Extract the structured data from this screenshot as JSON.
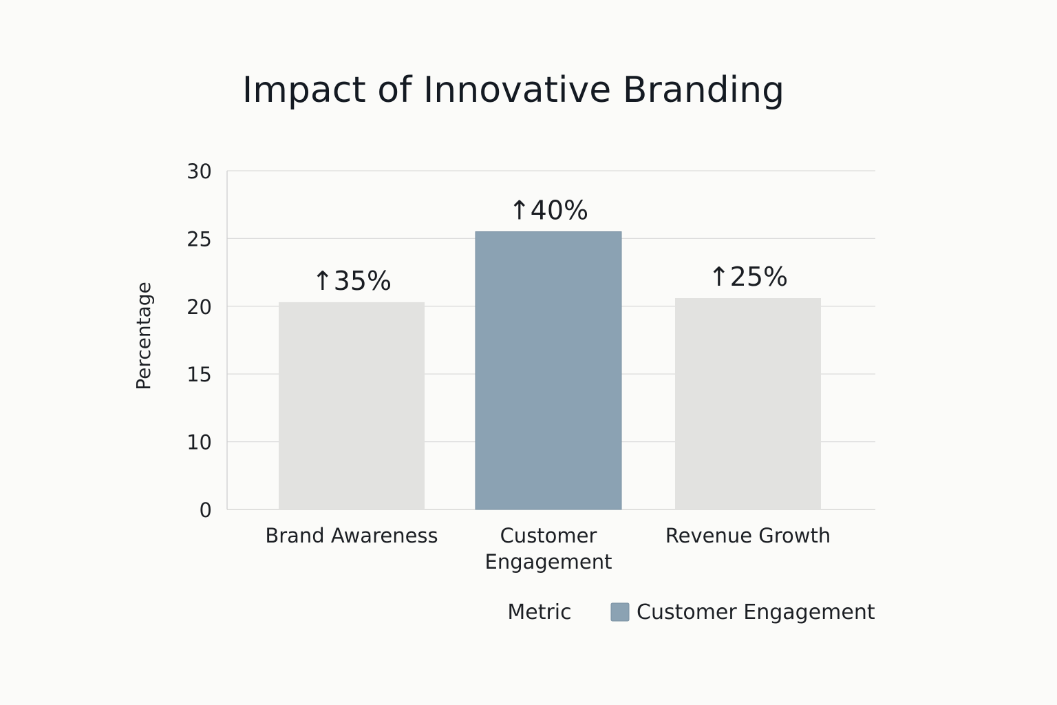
{
  "chart_data": {
    "type": "bar",
    "title": "Impact of Innovative Branding",
    "xlabel": "",
    "ylabel": "Percentage",
    "ylim": [
      0,
      30
    ],
    "yticks": [
      0,
      10,
      15,
      20,
      25,
      30
    ],
    "grid": true,
    "categories": [
      {
        "lines": [
          "Brand Awareness"
        ],
        "label": "Brand Awareness"
      },
      {
        "lines": [
          "Customer",
          "Engagement"
        ],
        "label": "Customer Engagement"
      },
      {
        "lines": [
          "Revenue Growth"
        ],
        "label": "Revenue Growth"
      }
    ],
    "values": [
      20.3,
      25.5,
      20.6
    ],
    "data_labels": [
      "↑35%",
      "↑40%",
      "↑25%"
    ],
    "highlighted_index": 1,
    "legend": {
      "title": "Metric",
      "entries": [
        "Customer Engagement"
      ],
      "position": "bottom-right"
    }
  },
  "colors": {
    "bar_default": "#e2e2e0",
    "bar_highlight": "#8ba2b3",
    "bar_highlight_stroke": "#7890a2",
    "grid": "#dcdcdc",
    "axis": "#cfcfcf"
  }
}
